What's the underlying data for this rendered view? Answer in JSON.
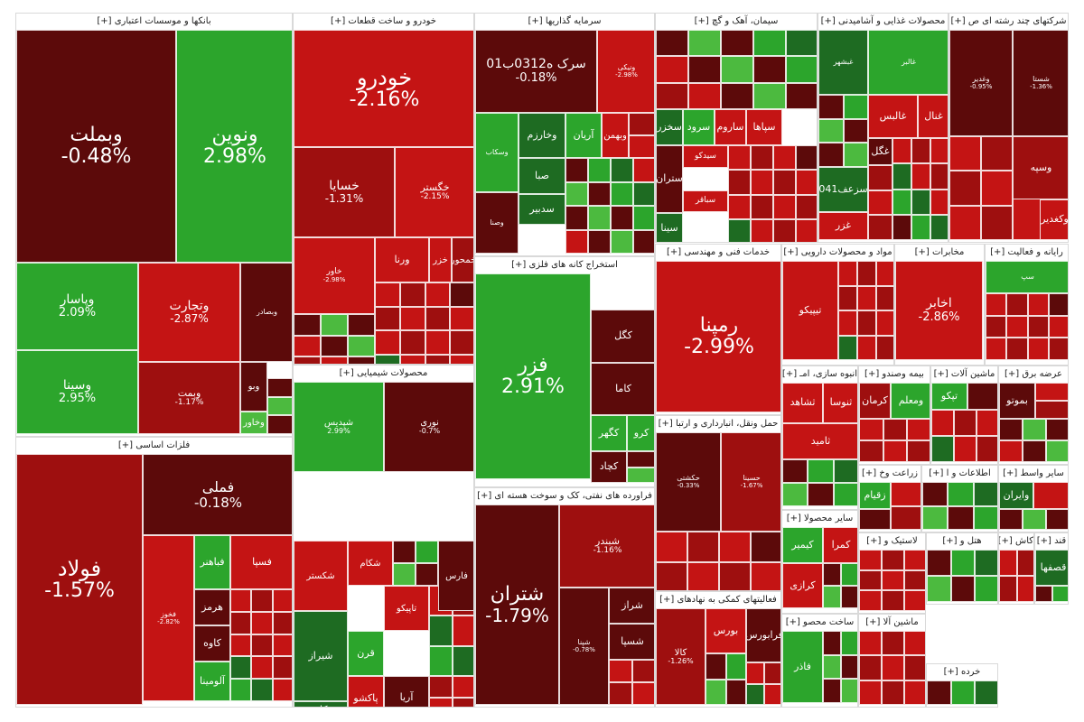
{
  "chart_data": {
    "type": "treemap",
    "title": "",
    "colors": {
      "strong_up": "#2ca52c",
      "up": "#4cba3f",
      "dark_up": "#1e6b22",
      "down": "#c41414",
      "mid_down": "#9e0f0f",
      "strong_down": "#5c0a0a"
    },
    "sectors": [
      {
        "name": "بانکها و موسسات اعتباری [+]",
        "tiles": [
          {
            "name": "وبملت",
            "change": "-0.48%",
            "color": "strong_down"
          },
          {
            "name": "ونوین",
            "change": "2.98%",
            "color": "strong_up"
          },
          {
            "name": "وپاسار",
            "change": "2.09%",
            "color": "strong_up"
          },
          {
            "name": "وسینا",
            "change": "2.95%",
            "color": "strong_up"
          },
          {
            "name": "وتجارت",
            "change": "-2.87%",
            "color": "down"
          },
          {
            "name": "وبصادر",
            "change": "",
            "color": "strong_down"
          },
          {
            "name": "وبمت",
            "change": "-1.17%",
            "color": "mid_down"
          },
          {
            "name": "وبو",
            "change": "",
            "color": "strong_down"
          },
          {
            "name": "وخاور",
            "change": "",
            "color": "up"
          }
        ]
      },
      {
        "name": "خودرو و ساخت قطعات [+]",
        "tiles": [
          {
            "name": "خودرو",
            "change": "-2.16%",
            "color": "down"
          },
          {
            "name": "خسایا",
            "change": "-1.31%",
            "color": "mid_down"
          },
          {
            "name": "خگستر",
            "change": "-2.15%",
            "color": "down"
          },
          {
            "name": "خاور",
            "change": "-2.98%",
            "color": "down"
          },
          {
            "name": "ورنا",
            "change": "",
            "color": "down"
          },
          {
            "name": "خزر",
            "change": "",
            "color": "down"
          },
          {
            "name": "خمحور",
            "change": "",
            "color": "mid_down"
          }
        ]
      },
      {
        "name": "سرمایه گذاریها [+]",
        "tiles": [
          {
            "name": "سرک ه0312ب01",
            "change": "-0.18%",
            "color": "strong_down"
          },
          {
            "name": "ونیکی",
            "change": "-2.98%",
            "color": "down"
          },
          {
            "name": "وخارزم",
            "change": "",
            "color": "dark_up"
          },
          {
            "name": "آریان",
            "change": "",
            "color": "strong_up"
          },
          {
            "name": "صبا",
            "change": "",
            "color": "dark_up"
          },
          {
            "name": "سدبیر",
            "change": "",
            "color": "dark_up"
          },
          {
            "name": "وسکاب",
            "change": "",
            "color": "strong_up"
          },
          {
            "name": "وصنا",
            "change": "",
            "color": "strong_down"
          },
          {
            "name": "وبهمن",
            "change": "",
            "color": "down"
          }
        ]
      },
      {
        "name": "سیمان، آهک و گچ [+]",
        "tiles": [
          {
            "name": "سخزر",
            "change": "",
            "color": "dark_up"
          },
          {
            "name": "سرود",
            "change": "",
            "color": "strong_up"
          },
          {
            "name": "ساروم",
            "change": "",
            "color": "down"
          },
          {
            "name": "سپاها",
            "change": "",
            "color": "down"
          },
          {
            "name": "ستران",
            "change": "",
            "color": "strong_down"
          },
          {
            "name": "سینا",
            "change": "",
            "color": "dark_up"
          },
          {
            "name": "سیدکو",
            "change": "",
            "color": "down"
          },
          {
            "name": "سباقر",
            "change": "",
            "color": "down"
          }
        ]
      },
      {
        "name": "محصولات غذایی و آشامیدنی [+]",
        "tiles": [
          {
            "name": "غبشهر",
            "change": "",
            "color": "dark_up"
          },
          {
            "name": "غالبر",
            "change": "",
            "color": "strong_up"
          },
          {
            "name": "غالبس",
            "change": "",
            "color": "down"
          },
          {
            "name": "غنال",
            "change": "",
            "color": "down"
          },
          {
            "name": "غگل",
            "change": "",
            "color": "strong_down"
          },
          {
            "name": "غزر",
            "change": "",
            "color": "down"
          },
          {
            "name": "سزعف041",
            "change": "",
            "color": "dark_up"
          }
        ]
      },
      {
        "name": "شرکتهای چند رشته ای ص [+]",
        "tiles": [
          {
            "name": "وصندوق",
            "change": "-2.66%",
            "color": "down"
          },
          {
            "name": "وغدیر",
            "change": "-0.95%",
            "color": "strong_down"
          },
          {
            "name": "شستا",
            "change": "-1.36%",
            "color": "strong_down"
          },
          {
            "name": "وسپه",
            "change": "",
            "color": "mid_down"
          },
          {
            "name": "وکغدیر",
            "change": "",
            "color": "down"
          }
        ]
      },
      {
        "name": "استخراج کانه های فلزی [+]",
        "tiles": [
          {
            "name": "فزر",
            "change": "2.91%",
            "color": "strong_up"
          },
          {
            "name": "کاما",
            "change": "",
            "color": "strong_down"
          },
          {
            "name": "کگهر",
            "change": "",
            "color": "strong_up"
          },
          {
            "name": "کچاد",
            "change": "",
            "color": "strong_down"
          },
          {
            "name": "کگل",
            "change": "",
            "color": "strong_down"
          },
          {
            "name": "کرو",
            "change": "",
            "color": "strong_up"
          }
        ]
      },
      {
        "name": "فلزات اساسی [+]",
        "tiles": [
          {
            "name": "فولاد",
            "change": "-1.57%",
            "color": "mid_down"
          },
          {
            "name": "فملی",
            "change": "-0.18%",
            "color": "strong_down"
          },
          {
            "name": "فخوز",
            "change": "-2.82%",
            "color": "down"
          },
          {
            "name": "فباهنر",
            "change": "",
            "color": "strong_up"
          },
          {
            "name": "فسپا",
            "change": "",
            "color": "down"
          },
          {
            "name": "هرمز",
            "change": "",
            "color": "strong_down"
          },
          {
            "name": "کاوه",
            "change": "",
            "color": "strong_down"
          },
          {
            "name": "آلومینا",
            "change": "",
            "color": "strong_up"
          }
        ]
      },
      {
        "name": "محصولات شیمیایی [+]",
        "tiles": [
          {
            "name": "شپدیس",
            "change": "2.99%",
            "color": "strong_up"
          },
          {
            "name": "نوری",
            "change": "-0.7%",
            "color": "strong_down"
          },
          {
            "name": "شکستر",
            "change": "",
            "color": "down"
          },
          {
            "name": "شکام",
            "change": "",
            "color": "down"
          },
          {
            "name": "فارس",
            "change": "",
            "color": "strong_down"
          },
          {
            "name": "تاپیکو",
            "change": "",
            "color": "down"
          },
          {
            "name": "شیراز",
            "change": "",
            "color": "dark_up"
          },
          {
            "name": "قرن",
            "change": "",
            "color": "strong_up"
          },
          {
            "name": "پاکشو",
            "change": "",
            "color": "down"
          },
          {
            "name": "کلر",
            "change": "",
            "color": "dark_up"
          },
          {
            "name": "آریا",
            "change": "",
            "color": "strong_down"
          }
        ]
      },
      {
        "name": "فراورده های نفتی، کک و سوخت هسته ای [+]",
        "tiles": [
          {
            "name": "شتران",
            "change": "-1.79%",
            "color": "strong_down"
          },
          {
            "name": "شبندر",
            "change": "-1.16%",
            "color": "mid_down"
          },
          {
            "name": "شپنا",
            "change": "-0.78%",
            "color": "strong_down"
          },
          {
            "name": "شراز",
            "change": "",
            "color": "strong_down"
          },
          {
            "name": "شسپا",
            "change": "",
            "color": "strong_down"
          }
        ]
      },
      {
        "name": "خدمات فنی و مهندسی [+]",
        "tiles": [
          {
            "name": "رمپنا",
            "change": "-2.99%",
            "color": "down"
          }
        ]
      },
      {
        "name": "حمل ونقل، انبارداری و ارتبا [+]",
        "tiles": [
          {
            "name": "حکشتی",
            "change": "-0.33%",
            "color": "strong_down"
          },
          {
            "name": "حسینا",
            "change": "-1.67%",
            "color": "mid_down"
          }
        ]
      },
      {
        "name": "فعالیتهای کمکی به نهادهای [+]",
        "tiles": [
          {
            "name": "کالا",
            "change": "-1.26%",
            "color": "mid_down"
          },
          {
            "name": "بورس",
            "change": "",
            "color": "down"
          },
          {
            "name": "فرابورس",
            "change": "",
            "color": "strong_down"
          }
        ]
      },
      {
        "name": "مواد و محصولات دارویی [+]",
        "tiles": [
          {
            "name": "تیپیکو",
            "change": "",
            "color": "down"
          }
        ]
      },
      {
        "name": "مخابرات [+]",
        "tiles": [
          {
            "name": "اخابر",
            "change": "-2.86%",
            "color": "down"
          }
        ]
      },
      {
        "name": "رایانه و فعالیت [+]",
        "tiles": [
          {
            "name": "سپ",
            "change": "",
            "color": "strong_up"
          }
        ]
      },
      {
        "name": "انبوه سازی، امـ [+]",
        "tiles": [
          {
            "name": "ثشاهد",
            "change": "",
            "color": "down"
          },
          {
            "name": "ثنوسا",
            "change": "",
            "color": "down"
          },
          {
            "name": "ثامید",
            "change": "",
            "color": "down"
          }
        ]
      },
      {
        "name": "بیمه وصندو [+]",
        "tiles": [
          {
            "name": "کرمان",
            "change": "",
            "color": "mid_down"
          },
          {
            "name": "ومعلم",
            "change": "",
            "color": "strong_up"
          }
        ]
      },
      {
        "name": "ماشین آلات [+]",
        "tiles": [
          {
            "name": "تپکو",
            "change": "",
            "color": "strong_up"
          }
        ]
      },
      {
        "name": "عرضه برق [+]",
        "tiles": [
          {
            "name": "بموتو",
            "change": "",
            "color": "strong_down"
          }
        ]
      },
      {
        "name": "سایر محصولا [+]",
        "tiles": [
          {
            "name": "کیمیر",
            "change": "",
            "color": "strong_up"
          },
          {
            "name": "کمرا",
            "change": "",
            "color": "down"
          },
          {
            "name": "کرازی",
            "change": "",
            "color": "down"
          }
        ]
      },
      {
        "name": "زراعت وخ [+]",
        "tiles": [
          {
            "name": "زقیام",
            "change": "",
            "color": "strong_up"
          }
        ]
      },
      {
        "name": "اطلاعات و ا [+]",
        "tiles": []
      },
      {
        "name": "سایر واسط [+]",
        "tiles": [
          {
            "name": "وایران",
            "change": "",
            "color": "dark_up"
          }
        ]
      },
      {
        "name": "ساخت محصو [+]",
        "tiles": [
          {
            "name": "فاذر",
            "change": "",
            "color": "strong_up"
          }
        ]
      },
      {
        "name": "لاستیک و [+]",
        "tiles": []
      },
      {
        "name": "هتل و [+]",
        "tiles": []
      },
      {
        "name": "کاش [+]",
        "tiles": []
      },
      {
        "name": "قند [+]",
        "tiles": [
          {
            "name": "قصفها",
            "change": "",
            "color": "dark_up"
          }
        ]
      },
      {
        "name": "ماشین آلا [+]",
        "tiles": []
      },
      {
        "name": "خرده [+]",
        "tiles": []
      }
    ]
  }
}
